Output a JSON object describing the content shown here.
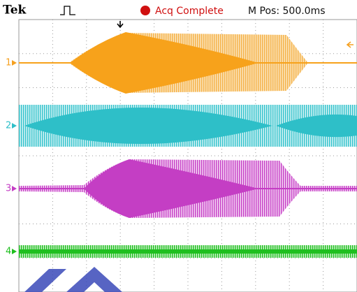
{
  "header": {
    "brand": "Tek",
    "status": "Acq Complete",
    "position": "M Pos: 500.0ms"
  },
  "channels": [
    {
      "label": "1"
    },
    {
      "label": "2"
    },
    {
      "label": "3"
    },
    {
      "label": "4"
    }
  ]
}
